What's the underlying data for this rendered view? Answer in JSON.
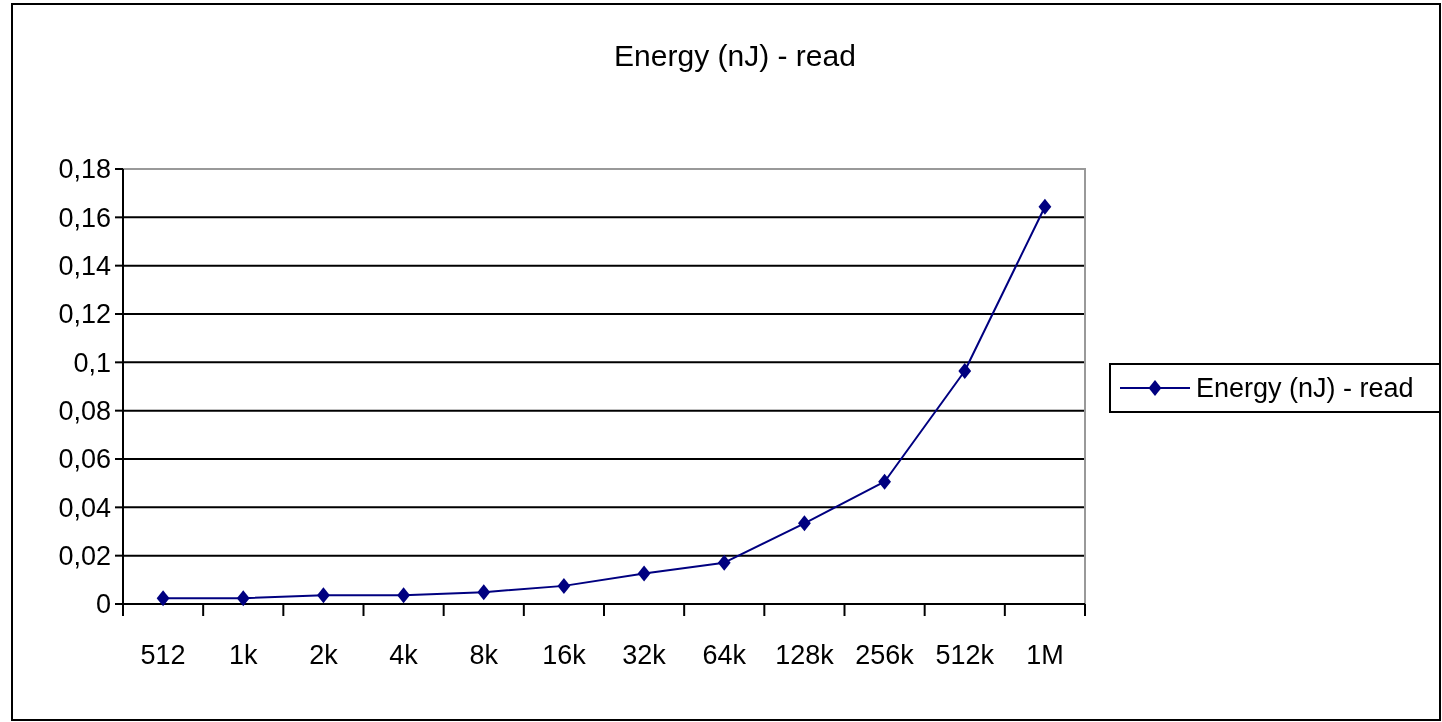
{
  "chart_data": {
    "type": "line",
    "title": "Energy (nJ) - read",
    "categories": [
      "512",
      "1k",
      "2k",
      "4k",
      "8k",
      "16k",
      "32k",
      "64k",
      "128k",
      "256k",
      "512k",
      "1M"
    ],
    "series": [
      {
        "name": "Energy (nJ) - read",
        "color": "#000080",
        "values": [
          0.0024,
          0.0024,
          0.0036,
          0.0036,
          0.0049,
          0.0075,
          0.0126,
          0.0171,
          0.0334,
          0.0506,
          0.0964,
          0.1644
        ]
      }
    ],
    "ylim": [
      0,
      0.18
    ],
    "yticks": [
      {
        "value": 0,
        "label": "0"
      },
      {
        "value": 0.02,
        "label": "0,02"
      },
      {
        "value": 0.04,
        "label": "0,04"
      },
      {
        "value": 0.06,
        "label": "0,06"
      },
      {
        "value": 0.08,
        "label": "0,08"
      },
      {
        "value": 0.1,
        "label": "0,1"
      },
      {
        "value": 0.12,
        "label": "0,12"
      },
      {
        "value": 0.14,
        "label": "0,14"
      },
      {
        "value": 0.16,
        "label": "0,16"
      },
      {
        "value": 0.18,
        "label": "0,18"
      }
    ],
    "grid": "y",
    "legend": "right",
    "marker": "diamond",
    "line_style": "solid"
  }
}
